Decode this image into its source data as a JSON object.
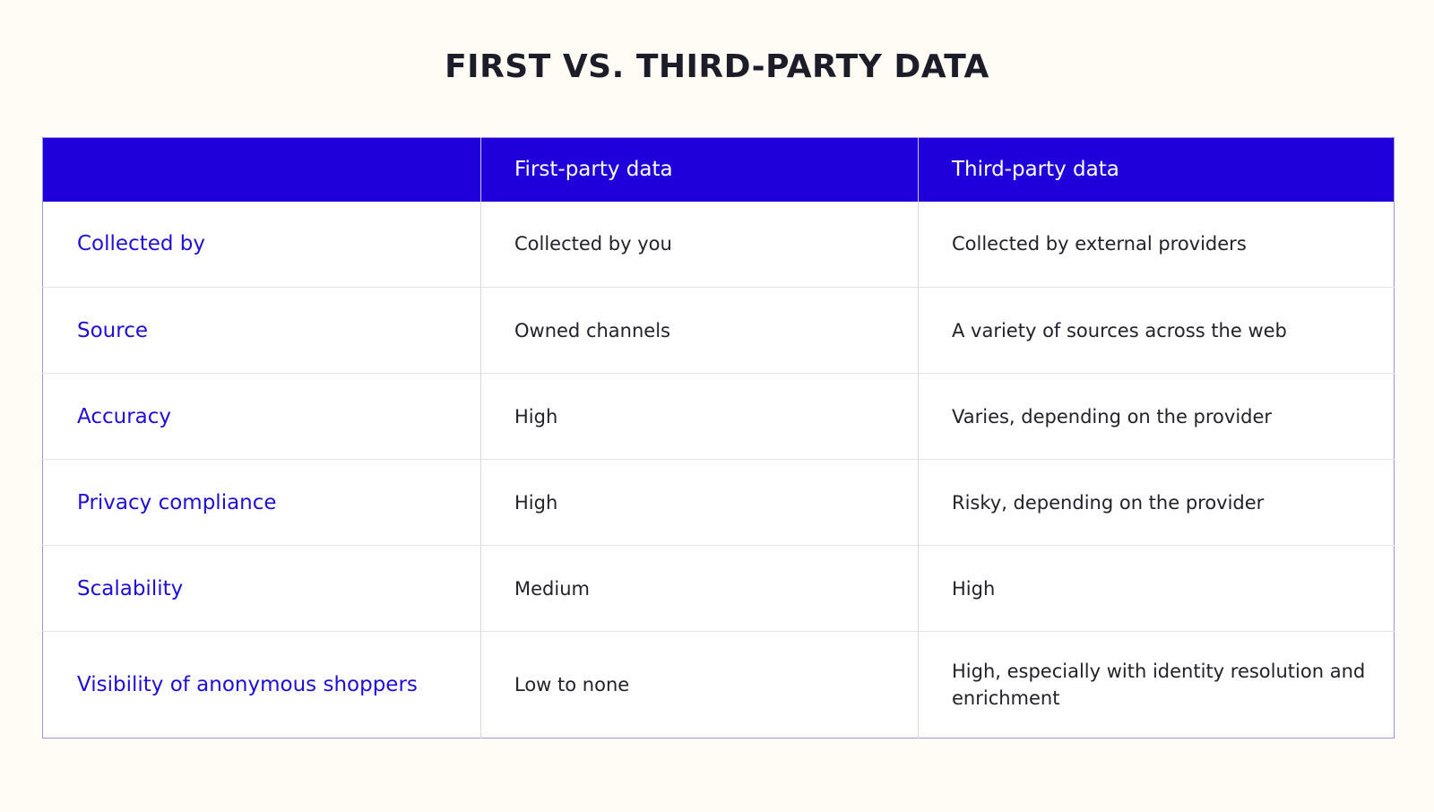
{
  "title": "FIRST VS. THIRD-PARTY DATA",
  "table": {
    "headers": [
      "",
      "First-party data",
      "Third-party data"
    ],
    "rows": [
      {
        "label": "Collected by",
        "first": "Collected by you",
        "third": "Collected by external providers"
      },
      {
        "label": "Source",
        "first": "Owned channels",
        "third": "A variety of sources across the web"
      },
      {
        "label": "Accuracy",
        "first": "High",
        "third": "Varies, depending on the provider"
      },
      {
        "label": "Privacy compliance",
        "first": "High",
        "third": "Risky, depending on the provider"
      },
      {
        "label": "Scalability",
        "first": "Medium",
        "third": "High"
      },
      {
        "label": "Visibility of anonymous shoppers",
        "first": "Low to none",
        "third": "High, especially with identity resolution and enrichment"
      }
    ]
  },
  "colors": {
    "background": "#fefcf4",
    "header_bg": "#1f00da",
    "label_text": "#1f0fd6",
    "title_text": "#1d1d29"
  }
}
